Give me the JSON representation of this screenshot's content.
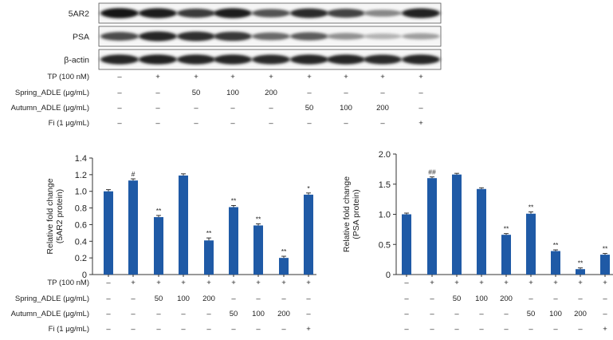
{
  "blot": {
    "lanes": 9,
    "bands": [
      {
        "label": "5AR2",
        "intensities": [
          0.95,
          0.92,
          0.78,
          0.93,
          0.66,
          0.86,
          0.74,
          0.4,
          0.9
        ]
      },
      {
        "label": "PSA",
        "intensities": [
          0.7,
          0.88,
          0.85,
          0.8,
          0.55,
          0.62,
          0.35,
          0.18,
          0.28
        ]
      },
      {
        "label": "β-actin",
        "intensities": [
          0.88,
          0.9,
          0.88,
          0.88,
          0.86,
          0.88,
          0.88,
          0.86,
          0.88
        ]
      }
    ]
  },
  "treatment_table": {
    "rows": [
      {
        "label": "TP (100 nM)",
        "values": [
          "–",
          "+",
          "+",
          "+",
          "+",
          "+",
          "+",
          "+",
          "+"
        ]
      },
      {
        "label": "Spring_ADLE (μg/mL)",
        "values": [
          "–",
          "–",
          "50",
          "100",
          "200",
          "–",
          "–",
          "–",
          "–"
        ]
      },
      {
        "label": "Autumn_ADLE (μg/mL)",
        "values": [
          "–",
          "–",
          "–",
          "–",
          "–",
          "50",
          "100",
          "200",
          "–"
        ]
      },
      {
        "label": "Fi (1 μg/mL)",
        "values": [
          "–",
          "–",
          "–",
          "–",
          "–",
          "–",
          "–",
          "–",
          "+"
        ]
      }
    ]
  },
  "chart_data": [
    {
      "type": "bar",
      "ylabel": "Relative fold change\n(5AR2 protein)",
      "ylim": [
        0,
        1.4
      ],
      "yticks": [
        "0",
        "0.2",
        "0.4",
        "0.6",
        "0.8",
        "1.0",
        "1.2",
        "1.4"
      ],
      "bar_color": "#1f5aa6",
      "values": [
        1.0,
        1.13,
        0.69,
        1.19,
        0.41,
        0.81,
        0.59,
        0.2,
        0.96
      ],
      "errors": [
        0.02,
        0.02,
        0.02,
        0.02,
        0.03,
        0.02,
        0.02,
        0.02,
        0.02
      ],
      "significance": [
        "",
        "#",
        "**",
        "",
        "**",
        "**",
        "**",
        "**",
        "*"
      ],
      "treatment_rows": [
        {
          "label": "TP (100 nM)",
          "values": [
            "–",
            "+",
            "+",
            "+",
            "+",
            "+",
            "+",
            "+",
            "+"
          ]
        },
        {
          "label": "Spring_ADLE (μg/mL)",
          "values": [
            "–",
            "–",
            "50",
            "100",
            "200",
            "–",
            "–",
            "–",
            "–"
          ]
        },
        {
          "label": "Autumn_ADLE (μg/mL)",
          "values": [
            "–",
            "–",
            "–",
            "–",
            "–",
            "50",
            "100",
            "200",
            "–"
          ]
        },
        {
          "label": "Fi (1 μg/mL)",
          "values": [
            "–",
            "–",
            "–",
            "–",
            "–",
            "–",
            "–",
            "–",
            "+"
          ]
        }
      ]
    },
    {
      "type": "bar",
      "ylabel": "Relative fold change\n(PSA protein)",
      "ylim": [
        0,
        2.0
      ],
      "yticks": [
        "0",
        "0.5",
        "1.0",
        "1.5",
        "2.0"
      ],
      "bar_color": "#1f5aa6",
      "values": [
        1.0,
        1.6,
        1.66,
        1.42,
        0.66,
        1.01,
        0.39,
        0.09,
        0.33
      ],
      "errors": [
        0.02,
        0.02,
        0.02,
        0.02,
        0.02,
        0.03,
        0.02,
        0.02,
        0.02
      ],
      "significance": [
        "",
        "##",
        "",
        "",
        "**",
        "**",
        "**",
        "**",
        "**"
      ],
      "treatment_rows": [
        {
          "label": "",
          "values": [
            "–",
            "+",
            "+",
            "+",
            "+",
            "+",
            "+",
            "+",
            "+"
          ]
        },
        {
          "label": "",
          "values": [
            "–",
            "–",
            "50",
            "100",
            "200",
            "–",
            "–",
            "–",
            "–"
          ]
        },
        {
          "label": "",
          "values": [
            "–",
            "–",
            "–",
            "–",
            "–",
            "50",
            "100",
            "200",
            "–"
          ]
        },
        {
          "label": "",
          "values": [
            "–",
            "–",
            "–",
            "–",
            "–",
            "–",
            "–",
            "–",
            "+"
          ]
        }
      ]
    }
  ]
}
